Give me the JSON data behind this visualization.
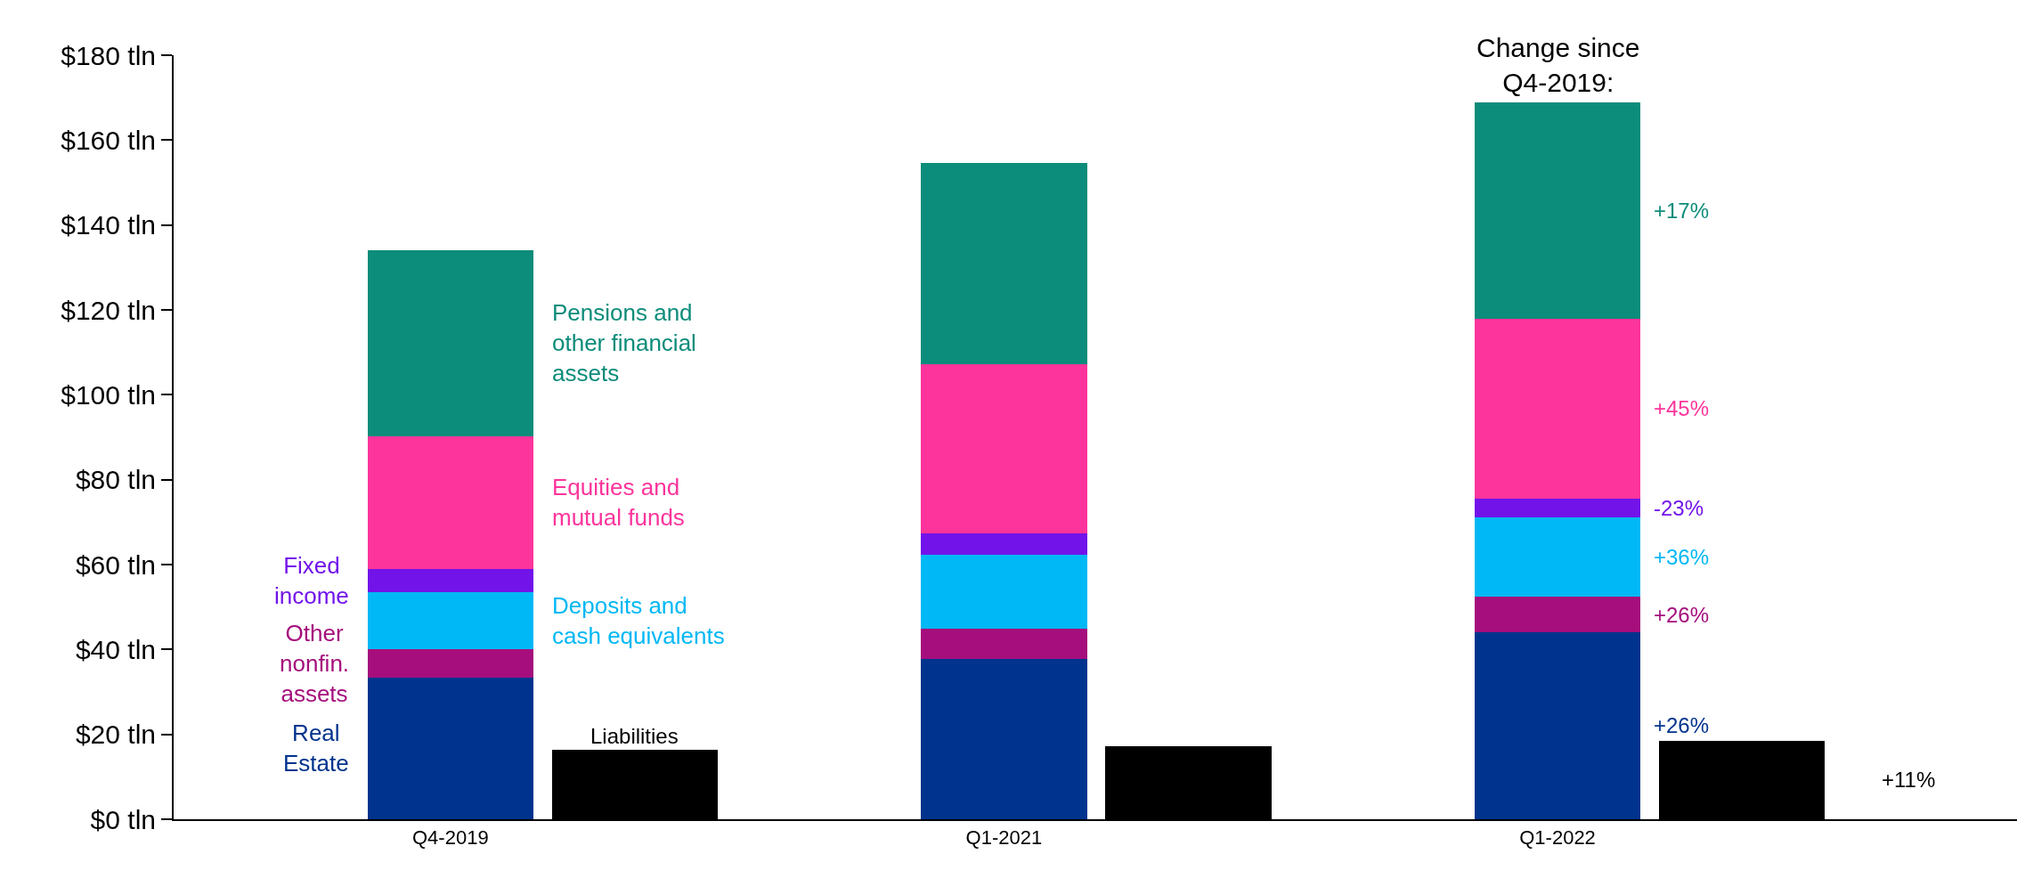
{
  "chart_data": {
    "type": "bar",
    "stacked": true,
    "categories": [
      "Q4-2019",
      null,
      "Q1-2021",
      null,
      "Q1-2022",
      null
    ],
    "ylim": [
      0,
      180
    ],
    "yticks": [
      {
        "value": 0,
        "label": "$0 tln"
      },
      {
        "value": 20,
        "label": "$20 tln"
      },
      {
        "value": 40,
        "label": "$40 tln"
      },
      {
        "value": 60,
        "label": "$60 tln"
      },
      {
        "value": 80,
        "label": "$80 tln"
      },
      {
        "value": 100,
        "label": "$100 tln"
      },
      {
        "value": 120,
        "label": "$120 tln"
      },
      {
        "value": 140,
        "label": "$140 tln"
      },
      {
        "value": 160,
        "label": "$160 tln"
      },
      {
        "value": 180,
        "label": "$180 tln"
      }
    ],
    "legend": false,
    "annotations": [
      "Change since Q4-2019:",
      "+26%",
      "+26%",
      "+36%",
      "-23%",
      "+45%",
      "+17%",
      "+11%"
    ],
    "series": [
      {
        "name": "Real Estate",
        "color": "#00338d",
        "values": [
          33.4,
          null,
          37.8,
          null,
          44.1,
          null
        ]
      },
      {
        "name": "Other nonfin. assets",
        "color": "#a50e7c",
        "values": [
          6.6,
          null,
          7.1,
          null,
          8.3,
          null
        ]
      },
      {
        "name": "Deposits and cash equivalents",
        "color": "#00b8f5",
        "values": [
          13.5,
          null,
          17.4,
          null,
          18.8,
          null
        ]
      },
      {
        "name": "Fixed income",
        "color": "#7213ea",
        "values": [
          5.5,
          null,
          5.0,
          null,
          4.4,
          null
        ]
      },
      {
        "name": "Equities and mutual funds",
        "color": "#fd349c",
        "values": [
          31.3,
          null,
          40.0,
          null,
          42.3,
          null
        ]
      },
      {
        "name": "Pensions and other financial assets",
        "color": "#0c8c7a",
        "values": [
          43.7,
          null,
          47.4,
          null,
          50.9,
          null
        ]
      },
      {
        "name": "Liabilities",
        "color": "#000000",
        "values": [
          null,
          16.4,
          null,
          17.1,
          null,
          18.5
        ]
      }
    ]
  }
}
